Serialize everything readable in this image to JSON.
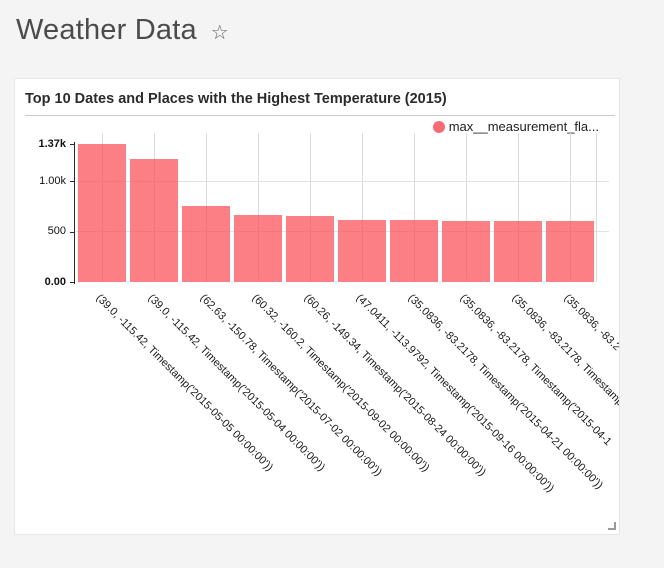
{
  "header": {
    "title": "Weather Data",
    "favorite_icon": "☆"
  },
  "card": {
    "title": "Top 10 Dates and Places with the Highest Temperature (2015)",
    "legend": {
      "label": "max__measurement_fla..."
    }
  },
  "colors": {
    "bar_fill": "rgba(250, 77, 86, 0.72)",
    "legend_dot": "#f96b74",
    "gridline": "#e2e2e2",
    "axis": "#2a2a2a"
  },
  "chart_data": {
    "type": "bar",
    "title": "Top 10 Dates and Places with the Highest Temperature (2015)",
    "xlabel": "",
    "ylabel": "",
    "ylim": [
      0,
      1370
    ],
    "grid": true,
    "legend_position": "top-right",
    "series": [
      {
        "name": "max__measurement_fla...",
        "values": [
          1370,
          1225,
          755,
          665,
          655,
          613,
          611,
          610,
          609,
          608
        ]
      }
    ],
    "categories": [
      "(39.0, -115.42, Timestamp('2015-05-05 00:00:00'))",
      "(39.0, -115.42, Timestamp('2015-05-04 00:00:00'))",
      "(62.63, -150.78, Timestamp('2015-07-02 00:00:00'))",
      "(60.32, -160.2, Timestamp('2015-09-02 00:00:00'))",
      "(60.26, -149.34, Timestamp('2015-08-24 00:00:00'))",
      "(47.0411, -113.9792, Timestamp('2015-09-16 00:00:00'))",
      "(35.0836, -83.2178, Timestamp('2015-04-21 00:00:00'))",
      "(35.0836, -83.2178, Timestamp('2015-04-1",
      "(35.0836, -83.2178, Timestamp('2",
      "(35.0836, -83.2"
    ],
    "y_ticks": [
      {
        "label": "1.37k",
        "value": 1370,
        "bold": true,
        "grid": false
      },
      {
        "label": "1.00k",
        "value": 1000,
        "bold": false,
        "grid": true
      },
      {
        "label": "500",
        "value": 500,
        "bold": false,
        "grid": true
      },
      {
        "label": "0.00",
        "value": 0,
        "bold": true,
        "grid": false
      }
    ]
  }
}
